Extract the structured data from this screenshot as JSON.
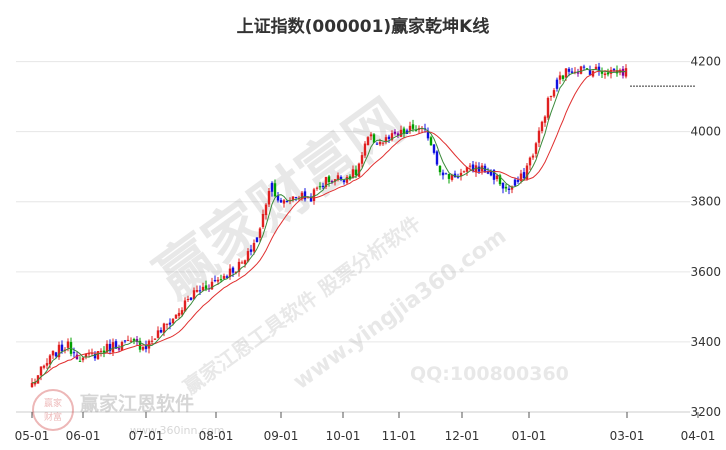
{
  "chart_data": {
    "type": "candlestick",
    "title": "上证指数(000001)赢家乾坤K线",
    "x_tick_labels": [
      "05-01",
      "06-01",
      "07-01",
      "08-01",
      "09-01",
      "10-01",
      "11-01",
      "12-01",
      "01-01",
      "03-01",
      "04-01"
    ],
    "y_tick_labels": [
      "3200",
      "3400",
      "3600",
      "3800",
      "4000",
      "4200"
    ],
    "ylim": [
      3200,
      4233
    ],
    "grid": "horizontal",
    "close_series": [
      [
        "05-01",
        3280
      ],
      [
        "05-15",
        3370
      ],
      [
        "05-22",
        3390
      ],
      [
        "06-01",
        3350
      ],
      [
        "06-15",
        3390
      ],
      [
        "06-22",
        3395
      ],
      [
        "07-01",
        3390
      ],
      [
        "07-15",
        3480
      ],
      [
        "07-22",
        3540
      ],
      [
        "08-01",
        3575
      ],
      [
        "08-10",
        3610
      ],
      [
        "08-15",
        3630
      ],
      [
        "08-22",
        3720
      ],
      [
        "08-27",
        3860
      ],
      [
        "09-01",
        3790
      ],
      [
        "09-08",
        3820
      ],
      [
        "09-15",
        3810
      ],
      [
        "09-22",
        3860
      ],
      [
        "10-01",
        3870
      ],
      [
        "10-08",
        3880
      ],
      [
        "10-15",
        3980
      ],
      [
        "10-22",
        3970
      ],
      [
        "11-01",
        3990
      ],
      [
        "11-08",
        4010
      ],
      [
        "11-15",
        3990
      ],
      [
        "11-22",
        3870
      ],
      [
        "12-01",
        3880
      ],
      [
        "12-08",
        3900
      ],
      [
        "12-15",
        3880
      ],
      [
        "12-22",
        3830
      ],
      [
        "12-29",
        3870
      ],
      [
        "01-05",
        3960
      ],
      [
        "01-12",
        4080
      ],
      [
        "01-19",
        4150
      ],
      [
        "01-26",
        4180
      ],
      [
        "02-02",
        4170
      ],
      [
        "02-09",
        4140
      ],
      [
        "02-16",
        4060
      ],
      [
        "02-23",
        4080
      ],
      [
        "03-01",
        4130
      ]
    ],
    "ma_short_color": "#3a8a3a",
    "ma_long_color": "#e03030",
    "up_color": "#e02020",
    "down_color": "#00a000",
    "special_colors": [
      "#1010e0",
      "#8000a0"
    ],
    "reference_line_value": 4130
  },
  "watermarks": {
    "main": "赢家财富网",
    "diagonal": "赢家江恩工具软件  股票分析软件",
    "site": "www.yingjia360.com",
    "qq": "QQ:100800360",
    "brand": "赢家江恩软件",
    "seal_top": "赢家",
    "seal_bottom": "财富",
    "url_small": "www.360inn.com"
  }
}
